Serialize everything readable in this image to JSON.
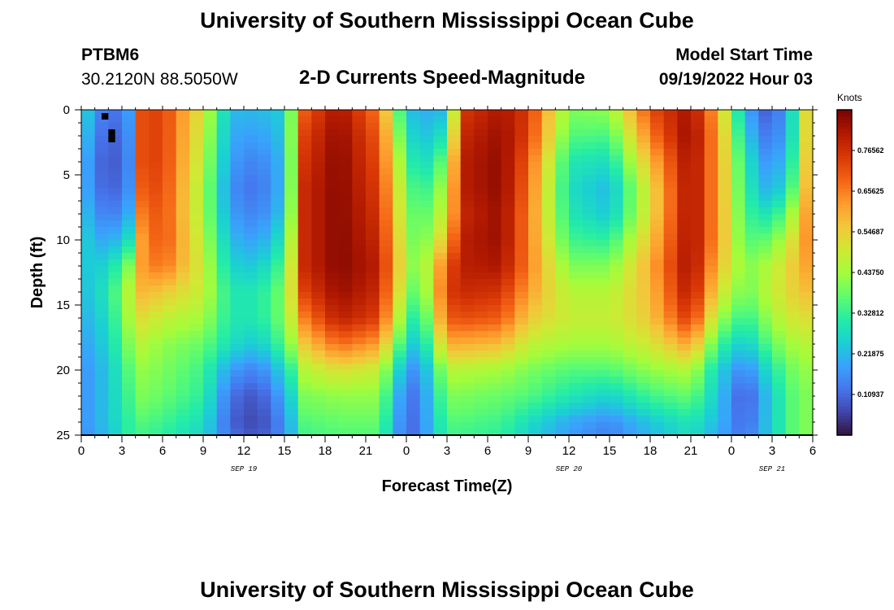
{
  "page": {
    "title_top": "University of Southern Mississippi Ocean Cube",
    "title_bottom": "University of Southern Mississippi Ocean Cube",
    "station_id": "PTBM6",
    "coordinates": "30.2120N  88.5050W",
    "plot_title": "2-D Currents Speed-Magnitude",
    "model_start_label": "Model Start Time",
    "model_start_value": "09/19/2022 Hour 03"
  },
  "colors": {
    "background": "#ffffff",
    "missing": "#000000",
    "colormap": [
      "#30123b",
      "#4145ab",
      "#4675ed",
      "#39a2fc",
      "#1bcfd4",
      "#24eca6",
      "#61fc6c",
      "#a4fc3b",
      "#d1e834",
      "#f3c63a",
      "#fe9b2d",
      "#f36315",
      "#d93806",
      "#b11901",
      "#7a0402"
    ]
  },
  "chart_data": {
    "type": "heatmap",
    "xlabel": "Forecast Time(Z)",
    "ylabel": "Depth (ft)",
    "xlim": [
      0,
      54
    ],
    "ylim": [
      25,
      0
    ],
    "x_ticks": [
      0,
      3,
      6,
      9,
      12,
      15,
      18,
      21,
      24,
      27,
      30,
      33,
      36,
      39,
      42,
      45,
      48,
      51,
      54
    ],
    "x_tick_labels": [
      "0",
      "3",
      "6",
      "9",
      "12",
      "15",
      "18",
      "21",
      "0",
      "3",
      "6",
      "9",
      "12",
      "15",
      "18",
      "21",
      "0",
      "3",
      "6"
    ],
    "y_ticks": [
      0,
      5,
      10,
      15,
      20,
      25
    ],
    "y_tick_labels": [
      "0",
      "5",
      "10",
      "15",
      "20",
      "25"
    ],
    "date_labels": [
      {
        "x": 12,
        "text": "SEP 19"
      },
      {
        "x": 36,
        "text": "SEP 20"
      },
      {
        "x": 51,
        "text": "SEP 21"
      }
    ],
    "colorbar": {
      "title": "Knots",
      "min": 0,
      "max": 0.875,
      "tick_values": [
        0.10937,
        0.21875,
        0.32812,
        0.4375,
        0.54687,
        0.65625,
        0.76562
      ],
      "tick_labels": [
        "0.10937",
        "0.21875",
        "0.32812",
        "0.43750",
        "0.54687",
        "0.65625",
        "0.76562"
      ]
    },
    "x_columns": [
      0,
      2,
      3.5,
      4.5,
      6,
      9,
      11,
      13,
      15,
      16.5,
      19,
      22,
      24,
      25,
      27,
      28,
      31,
      33,
      36,
      39,
      42,
      45,
      47,
      49,
      51,
      53,
      54
    ],
    "depth_rows": [
      0,
      2,
      4,
      6,
      8,
      10,
      12,
      14,
      16,
      18,
      20,
      22,
      24,
      25
    ],
    "speed_grid": [
      [
        0.28,
        0.1,
        0.18,
        0.72,
        0.74,
        0.5,
        0.22,
        0.22,
        0.25,
        0.7,
        0.83,
        0.66,
        0.25,
        0.2,
        0.22,
        0.75,
        0.82,
        0.75,
        0.4,
        0.42,
        0.72,
        0.83,
        0.6,
        0.2,
        0.07,
        0.35,
        0.7
      ],
      [
        0.25,
        0.08,
        0.16,
        0.72,
        0.74,
        0.48,
        0.2,
        0.18,
        0.24,
        0.74,
        0.85,
        0.7,
        0.3,
        0.22,
        0.3,
        0.78,
        0.84,
        0.74,
        0.36,
        0.35,
        0.66,
        0.85,
        0.62,
        0.25,
        0.1,
        0.35,
        0.7
      ],
      [
        0.22,
        0.07,
        0.15,
        0.72,
        0.74,
        0.46,
        0.18,
        0.14,
        0.22,
        0.76,
        0.86,
        0.72,
        0.36,
        0.25,
        0.4,
        0.8,
        0.85,
        0.7,
        0.3,
        0.28,
        0.58,
        0.84,
        0.62,
        0.3,
        0.14,
        0.38,
        0.72
      ],
      [
        0.22,
        0.08,
        0.16,
        0.7,
        0.73,
        0.44,
        0.16,
        0.12,
        0.22,
        0.78,
        0.86,
        0.74,
        0.4,
        0.3,
        0.46,
        0.8,
        0.85,
        0.68,
        0.28,
        0.22,
        0.52,
        0.84,
        0.62,
        0.32,
        0.18,
        0.42,
        0.72
      ],
      [
        0.24,
        0.12,
        0.2,
        0.66,
        0.72,
        0.44,
        0.18,
        0.14,
        0.24,
        0.78,
        0.86,
        0.76,
        0.42,
        0.34,
        0.5,
        0.78,
        0.84,
        0.66,
        0.3,
        0.24,
        0.52,
        0.84,
        0.62,
        0.34,
        0.28,
        0.5,
        0.72
      ],
      [
        0.26,
        0.18,
        0.28,
        0.62,
        0.72,
        0.46,
        0.22,
        0.18,
        0.3,
        0.78,
        0.86,
        0.78,
        0.44,
        0.36,
        0.58,
        0.8,
        0.84,
        0.66,
        0.34,
        0.32,
        0.56,
        0.84,
        0.62,
        0.36,
        0.38,
        0.56,
        0.7
      ],
      [
        0.24,
        0.26,
        0.4,
        0.62,
        0.68,
        0.48,
        0.26,
        0.24,
        0.36,
        0.78,
        0.86,
        0.8,
        0.46,
        0.38,
        0.7,
        0.8,
        0.82,
        0.66,
        0.4,
        0.4,
        0.6,
        0.84,
        0.58,
        0.4,
        0.46,
        0.58,
        0.64
      ],
      [
        0.22,
        0.3,
        0.46,
        0.58,
        0.56,
        0.48,
        0.3,
        0.3,
        0.4,
        0.74,
        0.84,
        0.78,
        0.42,
        0.34,
        0.74,
        0.78,
        0.76,
        0.62,
        0.46,
        0.46,
        0.58,
        0.82,
        0.52,
        0.38,
        0.48,
        0.56,
        0.58
      ],
      [
        0.2,
        0.28,
        0.44,
        0.52,
        0.48,
        0.44,
        0.3,
        0.3,
        0.4,
        0.66,
        0.8,
        0.74,
        0.36,
        0.28,
        0.7,
        0.72,
        0.7,
        0.56,
        0.48,
        0.48,
        0.56,
        0.76,
        0.44,
        0.32,
        0.44,
        0.52,
        0.52
      ],
      [
        0.18,
        0.26,
        0.4,
        0.46,
        0.42,
        0.38,
        0.28,
        0.24,
        0.36,
        0.56,
        0.68,
        0.62,
        0.28,
        0.22,
        0.6,
        0.6,
        0.58,
        0.48,
        0.44,
        0.44,
        0.5,
        0.62,
        0.34,
        0.24,
        0.38,
        0.46,
        0.46
      ],
      [
        0.16,
        0.24,
        0.36,
        0.42,
        0.4,
        0.34,
        0.18,
        0.14,
        0.26,
        0.46,
        0.52,
        0.48,
        0.18,
        0.16,
        0.46,
        0.46,
        0.44,
        0.4,
        0.36,
        0.36,
        0.42,
        0.46,
        0.26,
        0.14,
        0.3,
        0.42,
        0.42
      ],
      [
        0.16,
        0.24,
        0.34,
        0.4,
        0.38,
        0.32,
        0.12,
        0.08,
        0.2,
        0.4,
        0.42,
        0.42,
        0.12,
        0.14,
        0.4,
        0.4,
        0.38,
        0.36,
        0.3,
        0.26,
        0.34,
        0.38,
        0.24,
        0.08,
        0.26,
        0.4,
        0.4
      ],
      [
        0.16,
        0.24,
        0.32,
        0.36,
        0.34,
        0.28,
        0.1,
        0.06,
        0.16,
        0.36,
        0.38,
        0.38,
        0.1,
        0.14,
        0.36,
        0.36,
        0.34,
        0.28,
        0.2,
        0.16,
        0.24,
        0.3,
        0.22,
        0.1,
        0.26,
        0.4,
        0.4
      ],
      [
        0.16,
        0.22,
        0.32,
        0.34,
        0.32,
        0.26,
        0.12,
        0.08,
        0.16,
        0.34,
        0.36,
        0.36,
        0.1,
        0.14,
        0.34,
        0.34,
        0.32,
        0.26,
        0.18,
        0.14,
        0.22,
        0.28,
        0.2,
        0.12,
        0.26,
        0.4,
        0.4
      ]
    ],
    "missing_cells": [
      {
        "time": 1.5,
        "depth": 0.25
      },
      {
        "time": 2.0,
        "depth": 1.5
      },
      {
        "time": 2.0,
        "depth": 2.0
      }
    ]
  }
}
